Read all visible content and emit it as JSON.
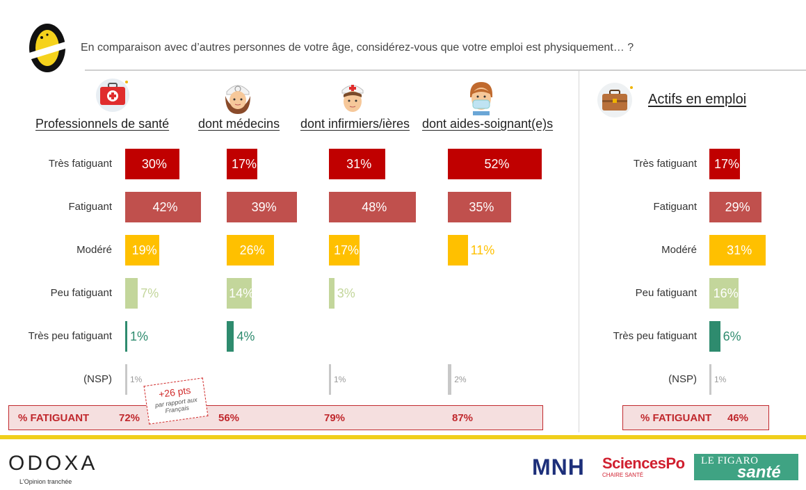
{
  "header": {
    "question": "En comparaison avec d’autres personnes de votre âge, considérez-vous que votre emploi est physiquement… ?"
  },
  "row_labels": [
    "Très fatiguant",
    "Fatiguant",
    "Modéré",
    "Peu fatiguant",
    "Très peu fatiguant",
    "(NSP)"
  ],
  "groups": [
    {
      "title": "Professionnels de santé",
      "labels": [
        "30%",
        "42%",
        "19%",
        "7%",
        "1%",
        "1%"
      ],
      "total": "72%"
    },
    {
      "title": "dont médecins",
      "labels": [
        "17%",
        "39%",
        "26%",
        "14%",
        "4%",
        ""
      ],
      "total": "56%"
    },
    {
      "title": "dont infirmiers/ières",
      "labels": [
        "31%",
        "48%",
        "17%",
        "3%",
        "",
        "1%"
      ],
      "total": "79%"
    },
    {
      "title": "dont aides-soignant(e)s",
      "labels": [
        "52%",
        "35%",
        "11%",
        "",
        "",
        "2%"
      ],
      "total": "87%"
    }
  ],
  "actifs": {
    "title": "Actifs en emploi",
    "labels": [
      "17%",
      "29%",
      "31%",
      "16%",
      "6%",
      "1%"
    ],
    "total_label": "% FATIGUANT",
    "total": "46%"
  },
  "total_row": {
    "label": "% FATIGUANT"
  },
  "note": {
    "main": "+26 pts",
    "sub": "par rapport aux Français"
  },
  "colors": {
    "tres_fatiguant": "#c00000",
    "fatiguant": "#c0504d",
    "modere": "#ffc000",
    "peu_fatiguant": "#c3d69b",
    "tres_peu": "#2e8b6e",
    "nsp": "#c8c8c8",
    "accent_line": "#f0cf1c"
  },
  "footer": {
    "odoxa": "ODOXA",
    "odoxa_tagline": "L'Opinion tranchée",
    "mnh": "MNH",
    "sciencespo": "SciencesPo",
    "sciencespo_sub": "CHAIRE SANTÉ",
    "figaro_top": "LE FIGARO",
    "figaro_bottom": "santé"
  },
  "chart_data": [
    {
      "type": "bar",
      "title": "Professionnels de santé",
      "categories": [
        "Très fatiguant",
        "Fatiguant",
        "Modéré",
        "Peu fatiguant",
        "Très peu fatiguant",
        "(NSP)"
      ],
      "values": [
        30,
        42,
        19,
        7,
        1,
        1
      ]
    },
    {
      "type": "bar",
      "title": "dont médecins",
      "categories": [
        "Très fatiguant",
        "Fatiguant",
        "Modéré",
        "Peu fatiguant",
        "Très peu fatiguant",
        "(NSP)"
      ],
      "values": [
        17,
        39,
        26,
        14,
        4,
        null
      ]
    },
    {
      "type": "bar",
      "title": "dont infirmiers/ières",
      "categories": [
        "Très fatiguant",
        "Fatiguant",
        "Modéré",
        "Peu fatiguant",
        "Très peu fatiguant",
        "(NSP)"
      ],
      "values": [
        31,
        48,
        17,
        3,
        null,
        1
      ]
    },
    {
      "type": "bar",
      "title": "dont aides-soignant(e)s",
      "categories": [
        "Très fatiguant",
        "Fatiguant",
        "Modéré",
        "Peu fatiguant",
        "Très peu fatiguant",
        "(NSP)"
      ],
      "values": [
        52,
        35,
        11,
        null,
        null,
        2
      ]
    },
    {
      "type": "bar",
      "title": "Actifs en emploi",
      "categories": [
        "Très fatiguant",
        "Fatiguant",
        "Modéré",
        "Peu fatiguant",
        "Très peu fatiguant",
        "(NSP)"
      ],
      "values": [
        17,
        29,
        31,
        16,
        6,
        1
      ]
    }
  ]
}
